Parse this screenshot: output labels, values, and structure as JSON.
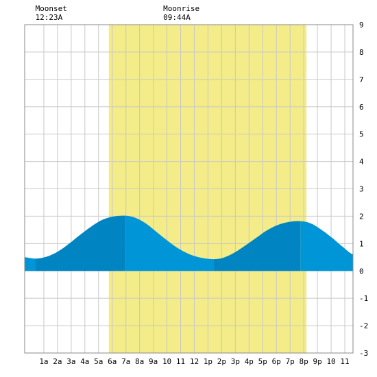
{
  "chart_data": {
    "type": "area",
    "title": "",
    "xlabel": "",
    "ylabel": "",
    "xlim": [
      -0.4,
      23.6
    ],
    "ylim": [
      -3,
      9
    ],
    "grid": true,
    "y_ticks": [
      "-3",
      "-2",
      "-1",
      "0",
      "1",
      "2",
      "3",
      "4",
      "5",
      "6",
      "7",
      "8",
      "9"
    ],
    "y_tick_values": [
      -3,
      -2,
      -1,
      0,
      1,
      2,
      3,
      4,
      5,
      6,
      7,
      8,
      9
    ],
    "x_ticks": [
      "1a",
      "2a",
      "3a",
      "4a",
      "5a",
      "6a",
      "7a",
      "8a",
      "9a",
      "10",
      "11",
      "12",
      "1p",
      "2p",
      "3p",
      "4p",
      "5p",
      "6p",
      "7p",
      "8p",
      "9p",
      "10",
      "11"
    ],
    "x_tick_values": [
      1,
      2,
      3,
      4,
      5,
      6,
      7,
      8,
      9,
      10,
      11,
      12,
      13,
      14,
      15,
      16,
      17,
      18,
      19,
      20,
      21,
      22,
      23
    ],
    "daylight": {
      "start": 5.75,
      "end": 20.2
    },
    "annotations": [
      {
        "label": "Moonset",
        "time": "12:23A",
        "x": 0.38
      },
      {
        "label": "Moonrise",
        "time": "09:44A",
        "x": 9.73
      }
    ],
    "extrema": [
      {
        "x": 0.4,
        "y": 0.45,
        "kind": "low"
      },
      {
        "x": 6.95,
        "y": 2.02,
        "kind": "high"
      },
      {
        "x": 13.4,
        "y": 0.43,
        "kind": "low"
      },
      {
        "x": 19.75,
        "y": 1.82,
        "kind": "high"
      }
    ],
    "series": [
      {
        "x": [
          -0.4,
          0.4,
          1.2,
          2,
          2.8,
          3.6,
          4.4,
          5.2,
          6,
          6.95,
          7.7,
          8.5,
          9.3,
          10.1,
          10.9,
          11.7,
          12.5,
          13.4,
          14.1,
          14.9,
          15.7,
          16.5,
          17.3,
          18.1,
          18.9,
          19.75,
          20.5,
          21.3,
          22.1,
          22.9,
          23.6
        ],
        "values": [
          0.5,
          0.45,
          0.52,
          0.7,
          0.98,
          1.3,
          1.6,
          1.85,
          1.98,
          2.02,
          1.94,
          1.72,
          1.4,
          1.08,
          0.8,
          0.6,
          0.48,
          0.43,
          0.48,
          0.66,
          0.92,
          1.2,
          1.48,
          1.68,
          1.79,
          1.82,
          1.74,
          1.5,
          1.2,
          0.86,
          0.6
        ]
      }
    ]
  },
  "colors": {
    "daylight": "#f3ec88",
    "tide_rising": "#0085c2",
    "tide_falling": "#0095d6",
    "grid": "#c8c8c8",
    "frame": "#888888"
  }
}
